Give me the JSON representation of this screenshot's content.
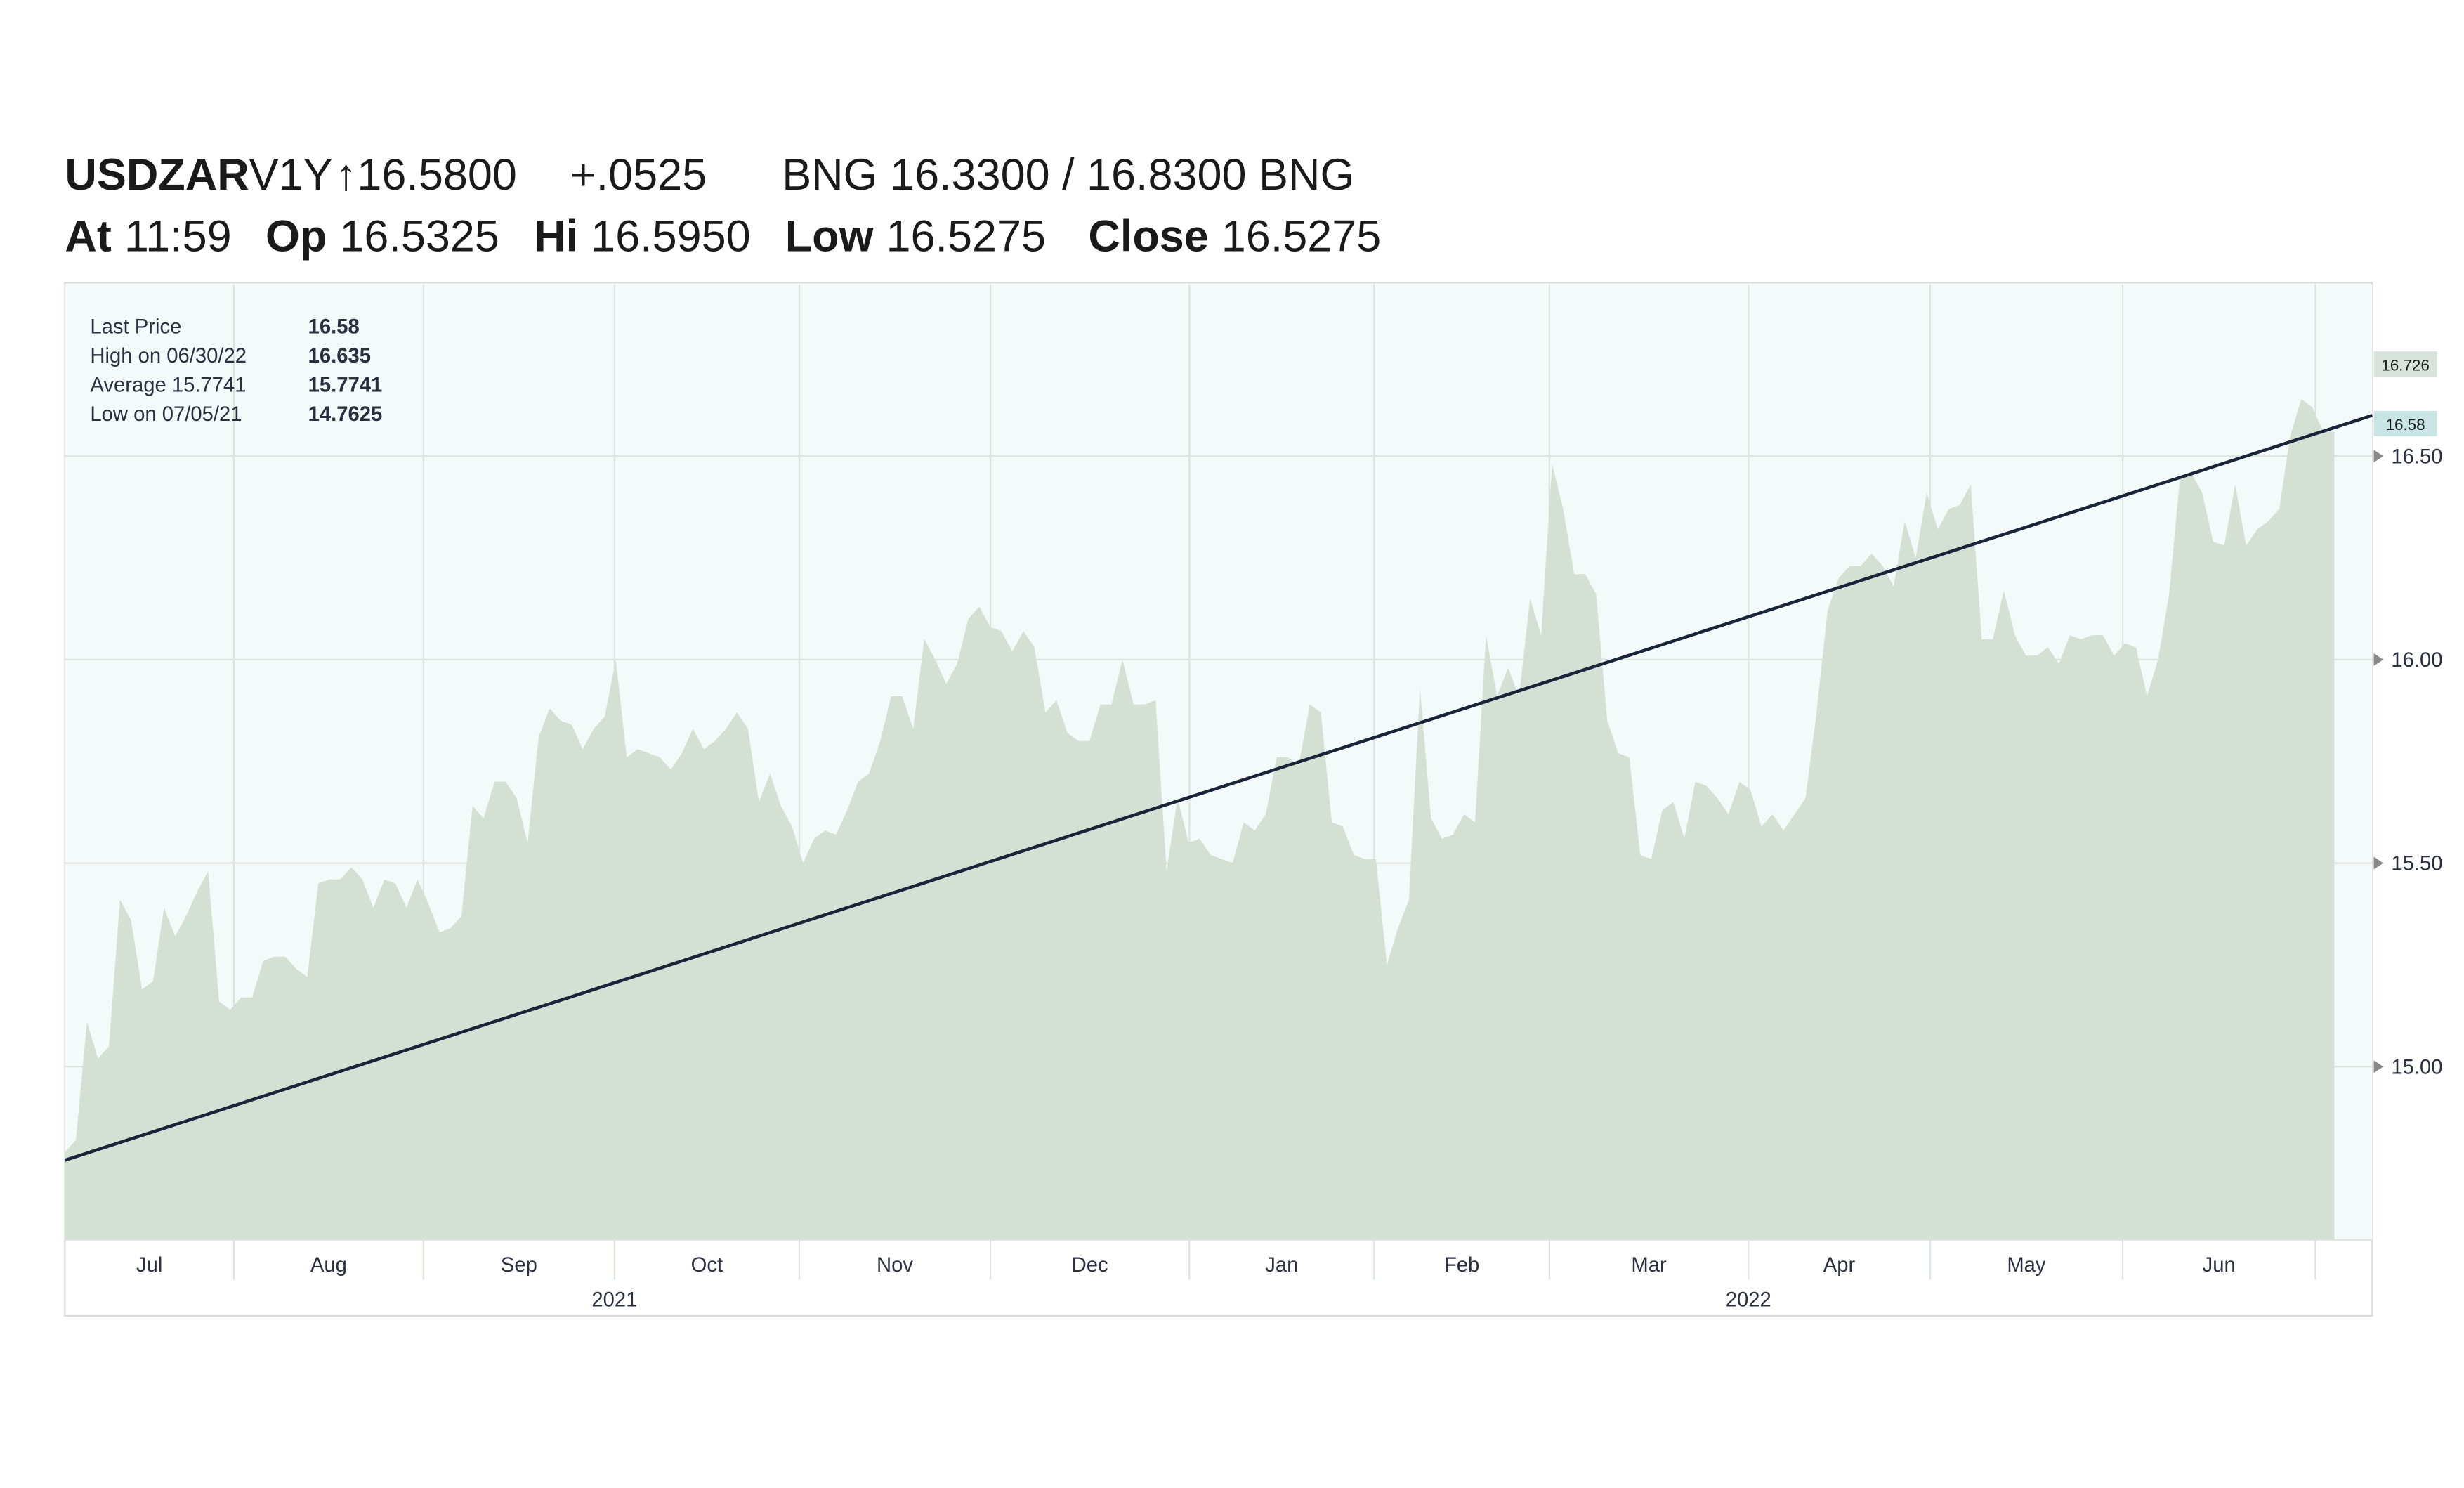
{
  "header": {
    "symbol": "USDZAR",
    "period": "V1Y",
    "last": "↑16.5800",
    "change": "+.0525",
    "bid_ask": "BNG 16.3300 / 16.8300 BNG",
    "fields": [
      {
        "label": "At",
        "value": "11:59"
      },
      {
        "label": "Op",
        "value": "16.5325"
      },
      {
        "label": "Hi",
        "value": "16.5950"
      },
      {
        "label": "Low",
        "value": "16.5275"
      },
      {
        "label": "Close",
        "value": "16.5275"
      }
    ]
  },
  "chart_data": {
    "type": "area",
    "color": "#d5e0d5",
    "trend_color": "#1a2438",
    "stats": [
      {
        "label": "Last Price",
        "value": 16.58
      },
      {
        "label": "High on 06/30/22",
        "value": 16.635
      },
      {
        "label": "Average 15.7741",
        "value": 15.7741
      },
      {
        "label": "Low on 07/05/21",
        "value": 14.7625
      }
    ],
    "months": [
      "Jul",
      "Aug",
      "Sep",
      "Oct",
      "Nov",
      "Dec",
      "Jan",
      "Feb",
      "Mar",
      "Apr",
      "May",
      "Jun"
    ],
    "years": [
      "2021",
      "2022"
    ],
    "ylim": [
      14.574,
      16.922
    ],
    "yticks": [
      {
        "value": 15,
        "label": "15.00"
      },
      {
        "value": 15.5,
        "label": "15.50"
      },
      {
        "value": 16,
        "label": "16.00"
      },
      {
        "value": 16.5,
        "label": "16.50"
      }
    ],
    "grid": true,
    "high_tag": 16.726,
    "last_tag": 16.58,
    "trend_line": [
      14.77,
      16.6
    ],
    "values": [
      14.79,
      14.82,
      15.11,
      15.02,
      15.05,
      15.41,
      15.36,
      15.19,
      15.21,
      15.39,
      15.32,
      15.37,
      15.43,
      15.48,
      15.16,
      15.14,
      15.17,
      15.17,
      15.26,
      15.27,
      15.27,
      15.24,
      15.22,
      15.45,
      15.46,
      15.46,
      15.49,
      15.46,
      15.39,
      15.46,
      15.45,
      15.39,
      15.46,
      15.4,
      15.33,
      15.34,
      15.37,
      15.64,
      15.61,
      15.7,
      15.7,
      15.66,
      15.55,
      15.81,
      15.88,
      15.85,
      15.84,
      15.78,
      15.83,
      15.86,
      16.0,
      15.76,
      15.78,
      15.77,
      15.76,
      15.73,
      15.77,
      15.83,
      15.78,
      15.8,
      15.83,
      15.87,
      15.83,
      15.65,
      15.72,
      15.64,
      15.59,
      15.5,
      15.56,
      15.58,
      15.57,
      15.63,
      15.7,
      15.72,
      15.8,
      15.91,
      15.91,
      15.83,
      16.05,
      16.0,
      15.94,
      15.99,
      16.1,
      16.13,
      16.08,
      16.07,
      16.02,
      16.07,
      16.03,
      15.87,
      15.9,
      15.82,
      15.8,
      15.8,
      15.89,
      15.89,
      16.0,
      15.89,
      15.89,
      15.9,
      15.48,
      15.66,
      15.55,
      15.56,
      15.52,
      15.51,
      15.5,
      15.6,
      15.58,
      15.62,
      15.76,
      15.76,
      15.74,
      15.89,
      15.87,
      15.6,
      15.59,
      15.52,
      15.51,
      15.51,
      15.25,
      15.34,
      15.41,
      15.93,
      15.61,
      15.56,
      15.57,
      15.62,
      15.6,
      16.06,
      15.91,
      15.98,
      15.91,
      16.15,
      16.06,
      16.48,
      16.37,
      16.21,
      16.21,
      16.16,
      15.85,
      15.77,
      15.76,
      15.52,
      15.51,
      15.63,
      15.65,
      15.56,
      15.7,
      15.69,
      15.66,
      15.62,
      15.7,
      15.68,
      15.59,
      15.62,
      15.58,
      15.62,
      15.66,
      15.87,
      16.12,
      16.2,
      16.23,
      16.23,
      16.26,
      16.23,
      16.18,
      16.34,
      16.25,
      16.41,
      16.32,
      16.37,
      16.38,
      16.43,
      16.05,
      16.05,
      16.17,
      16.06,
      16.01,
      16.01,
      16.03,
      15.99,
      16.06,
      16.05,
      16.06,
      16.06,
      16.01,
      16.04,
      16.03,
      15.91,
      16.0,
      16.16,
      16.45,
      16.46,
      16.41,
      16.29,
      16.28,
      16.43,
      16.28,
      16.32,
      16.34,
      16.37,
      16.55,
      16.64,
      16.62,
      16.56,
      16.56
    ]
  }
}
